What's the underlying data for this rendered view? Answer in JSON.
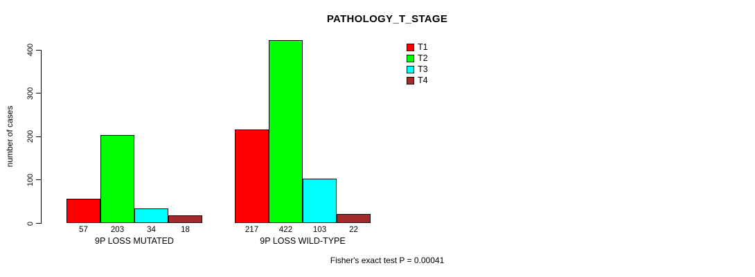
{
  "chart_data": {
    "type": "bar",
    "title": "PATHOLOGY_T_STAGE",
    "xlabel": "",
    "ylabel": "number of cases",
    "ylim": [
      0,
      400
    ],
    "yticks": [
      0,
      100,
      200,
      300,
      400
    ],
    "grid": false,
    "legend_position": "top-right",
    "categories": [
      "9P LOSS MUTATED",
      "9P LOSS WILD-TYPE"
    ],
    "series": [
      {
        "name": "T1",
        "color": "#ff0000",
        "values": [
          57,
          217
        ]
      },
      {
        "name": "T2",
        "color": "#00ff00",
        "values": [
          203,
          422
        ]
      },
      {
        "name": "T3",
        "color": "#00ffff",
        "values": [
          34,
          103
        ]
      },
      {
        "name": "T4",
        "color": "#a52a2a",
        "values": [
          18,
          22
        ]
      }
    ],
    "bar_value_labels": {
      "9P LOSS MUTATED": [
        57,
        203,
        34,
        18
      ],
      "9P LOSS WILD-TYPE": [
        217,
        422,
        103,
        22
      ]
    },
    "annotation": "Fisher's exact test P = 0.00041"
  }
}
